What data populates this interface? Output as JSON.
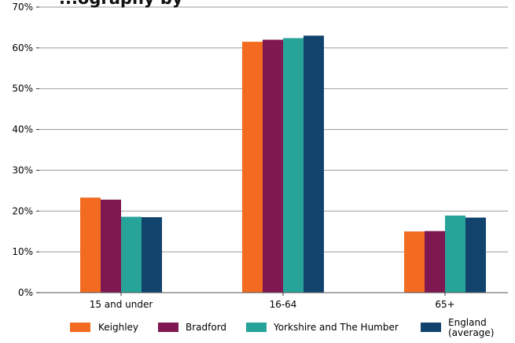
{
  "chart_data": {
    "type": "bar",
    "title": "...ography by",
    "categories": [
      "15 and under",
      "16-64",
      "65+"
    ],
    "series": [
      {
        "name": "Keighley",
        "color": "#f26b21",
        "values": [
          23.3,
          61.5,
          15.0
        ]
      },
      {
        "name": "Bradford",
        "color": "#7f1850",
        "values": [
          22.8,
          62.0,
          15.1
        ]
      },
      {
        "name": "Yorkshire and The Humber",
        "color": "#27a39a",
        "values": [
          18.6,
          62.4,
          18.9
        ]
      },
      {
        "name": "England\n(average)",
        "color": "#12436d",
        "values": [
          18.5,
          63.0,
          18.4
        ]
      }
    ],
    "ylim": [
      0,
      70
    ],
    "yticks": [
      0,
      10,
      20,
      30,
      40,
      50,
      60,
      70
    ],
    "ytick_labels": [
      "0%",
      "10%",
      "20%",
      "30%",
      "40%",
      "50%",
      "60%",
      "70%"
    ],
    "xlabel": "",
    "ylabel": "",
    "grid": true,
    "legend_position": "bottom"
  }
}
